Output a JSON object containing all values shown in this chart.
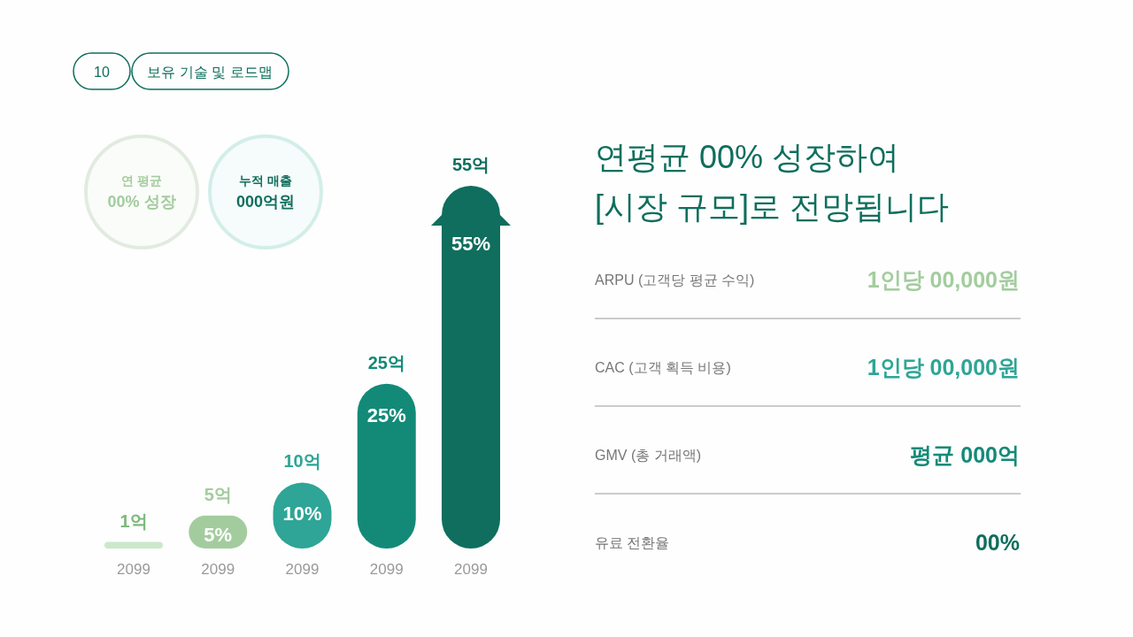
{
  "chart_data": [
    {
      "type": "bar",
      "categories": [
        "2099",
        "2099",
        "2099",
        "2099",
        "2099"
      ],
      "values": [
        1,
        5,
        10,
        25,
        55
      ],
      "colors": [
        "#cce8cc",
        "#a3cc9e",
        "#2ea596",
        "#138a78",
        "#0f6e5d"
      ],
      "value_labels": [
        "1억",
        "5억",
        "10억",
        "25억",
        "55억"
      ],
      "annotations": [
        "10",
        "보유 기술 및 로드맵",
        "연 평균",
        "00% 성장",
        "누적 매출",
        "000억원",
        "5%",
        "10%",
        "25%",
        "55%"
      ]
    },
    {
      "type": "other",
      "title": "연평균 00% 성장하여 [시장 규모]로 전망됩니다",
      "annotations": [
        "ARPU (고객당 평균 수익)",
        "1인당 00,000원",
        "CAC (고객 획득 비용)",
        "1인당 00,000원",
        "GMV (총 거래액)",
        "평균 000억",
        "유료 전환율",
        "00%"
      ]
    }
  ]
}
